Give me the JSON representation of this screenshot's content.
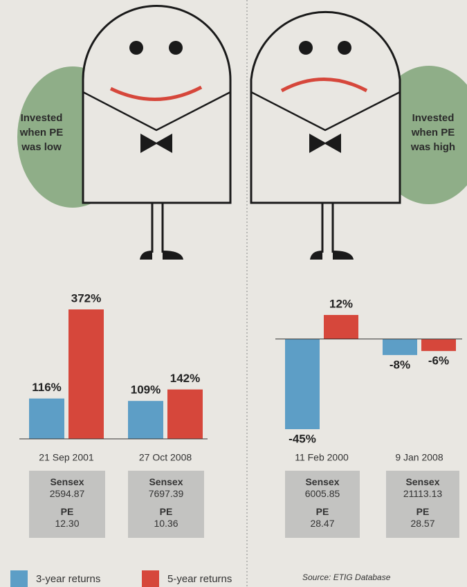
{
  "chart_data": [
    {
      "type": "bar",
      "annotation": "Invested when PE was low",
      "categories": [
        "21 Sep 2001",
        "27 Oct 2008"
      ],
      "series": [
        {
          "name": "3-year returns",
          "color": "#5d9ec6",
          "values": [
            116,
            109
          ],
          "value_labels": [
            "116%",
            "109%"
          ]
        },
        {
          "name": "5-year returns",
          "color": "#d6473b",
          "values": [
            372,
            142
          ],
          "value_labels": [
            "372%",
            "142%"
          ]
        }
      ],
      "info_labels": [
        "Sensex",
        "PE"
      ],
      "sensex": [
        "2594.87",
        "7697.39"
      ],
      "pe": [
        "12.30",
        "10.36"
      ]
    },
    {
      "type": "bar",
      "annotation": "Invested when PE was high",
      "categories": [
        "11 Feb 2000",
        "9 Jan 2008"
      ],
      "series": [
        {
          "color": "#5d9ec6",
          "values": [
            -45,
            -8
          ],
          "value_labels": [
            "-45%",
            "-8%"
          ]
        },
        {
          "color": "#d6473b",
          "values": [
            12,
            -6
          ],
          "value_labels": [
            "12%",
            "-6%"
          ]
        }
      ],
      "info_labels": [
        "Sensex",
        "PE"
      ],
      "sensex": [
        "6005.85",
        "21113.13"
      ],
      "pe": [
        "28.47",
        "28.57"
      ]
    }
  ],
  "source": "Source: ETIG Database"
}
